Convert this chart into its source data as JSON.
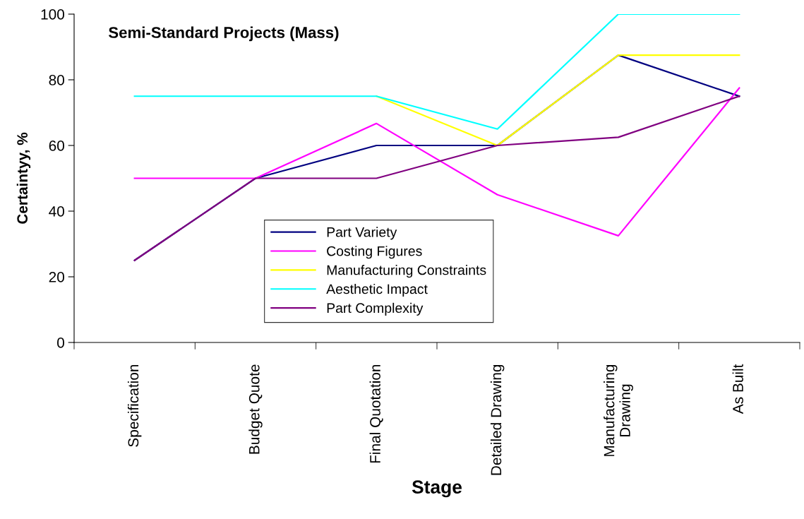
{
  "chart_data": {
    "type": "line",
    "title": "Semi-Standard Projects (Mass)",
    "xlabel": "Stage",
    "ylabel": "Certaintyy, %",
    "categories": [
      "Specification",
      "Budget Quote",
      "Final Quotation",
      "Detailed Drawing",
      "Manufacturing\nDrawing",
      "As Built"
    ],
    "series": [
      {
        "name": "Part Variety",
        "color": "#000080",
        "values": [
          25,
          50,
          60,
          60,
          87.5,
          75
        ]
      },
      {
        "name": "Costing Figures",
        "color": "#ff00ff",
        "values": [
          50,
          50,
          66.7,
          45,
          32.5,
          77.5
        ]
      },
      {
        "name": "Manufacturing Constraints",
        "color": "#ffff00",
        "values": [
          null,
          null,
          75,
          60,
          87.5,
          87.5
        ]
      },
      {
        "name": "Aesthetic Impact",
        "color": "#00ffff",
        "values": [
          75,
          75,
          75,
          65,
          100,
          100
        ]
      },
      {
        "name": "Part Complexity",
        "color": "#800080",
        "values": [
          25,
          50,
          50,
          60,
          62.5,
          75
        ]
      }
    ],
    "ylim": [
      0,
      100
    ],
    "yticks": [
      0,
      20,
      40,
      60,
      80,
      100
    ],
    "grid": false,
    "legend": "bottom",
    "marker": "none",
    "line_style": "solid"
  }
}
